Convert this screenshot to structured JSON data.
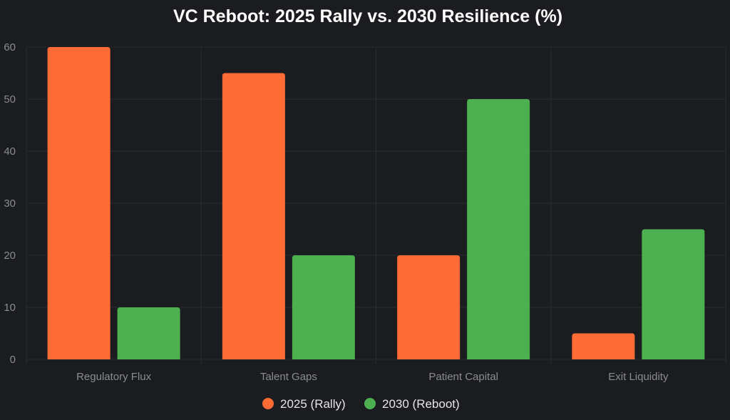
{
  "colors": {
    "background": "#1b1c1f",
    "grid": "#2a2b2f",
    "tick_text": "#8a8c90",
    "title_text": "#ffffff",
    "legend_text": "#e6e6e6"
  },
  "chart_data": {
    "type": "bar",
    "title": "VC Reboot: 2025 Rally vs. 2030 Resilience (%)",
    "xlabel": "",
    "ylabel": "",
    "categories": [
      "Regulatory Flux",
      "Talent Gaps",
      "Patient Capital",
      "Exit Liquidity"
    ],
    "series": [
      {
        "name": "2025 (Rally)",
        "color": "#ff6b35",
        "values": [
          60,
          55,
          20,
          5
        ]
      },
      {
        "name": "2030 (Reboot)",
        "color": "#4caf50",
        "values": [
          10,
          20,
          50,
          25
        ]
      }
    ],
    "ylim": [
      0,
      60
    ],
    "yticks": [
      0,
      10,
      20,
      30,
      40,
      50,
      60
    ],
    "grid": true,
    "legend_position": "bottom"
  }
}
